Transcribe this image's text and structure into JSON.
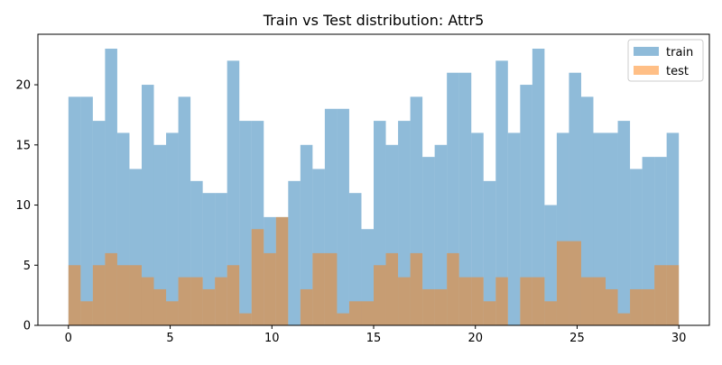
{
  "chart_data": {
    "type": "bar",
    "title": "Train vs Test distribution: Attr5",
    "xlabel": "",
    "ylabel": "",
    "xlim": [
      -1.5,
      31.5
    ],
    "ylim": [
      0,
      24.2
    ],
    "bin_start": 0,
    "bin_width": 0.6,
    "xticks": [
      0,
      5,
      10,
      15,
      20,
      25,
      30
    ],
    "yticks": [
      0,
      5,
      10,
      15,
      20
    ],
    "legend": {
      "position": "top-right"
    },
    "series": [
      {
        "name": "train",
        "color": "#1f77b4",
        "alpha": 0.5,
        "values": [
          19,
          19,
          17,
          23,
          16,
          13,
          20,
          15,
          16,
          19,
          12,
          11,
          11,
          22,
          17,
          17,
          9,
          9,
          12,
          15,
          13,
          18,
          18,
          11,
          8,
          17,
          15,
          17,
          19,
          14,
          15,
          21,
          21,
          16,
          12,
          22,
          16,
          20,
          23,
          10,
          16,
          21,
          19,
          16,
          16,
          17,
          13,
          14,
          14,
          16
        ]
      },
      {
        "name": "test",
        "color": "#ff7f0e",
        "alpha": 0.5,
        "values": [
          5,
          2,
          5,
          6,
          5,
          5,
          4,
          3,
          2,
          4,
          4,
          3,
          4,
          5,
          1,
          8,
          6,
          9,
          0,
          3,
          6,
          6,
          1,
          2,
          2,
          5,
          6,
          4,
          6,
          3,
          3,
          6,
          4,
          4,
          2,
          4,
          0,
          4,
          4,
          2,
          7,
          7,
          4,
          4,
          3,
          1,
          3,
          3,
          5,
          5
        ]
      }
    ]
  }
}
